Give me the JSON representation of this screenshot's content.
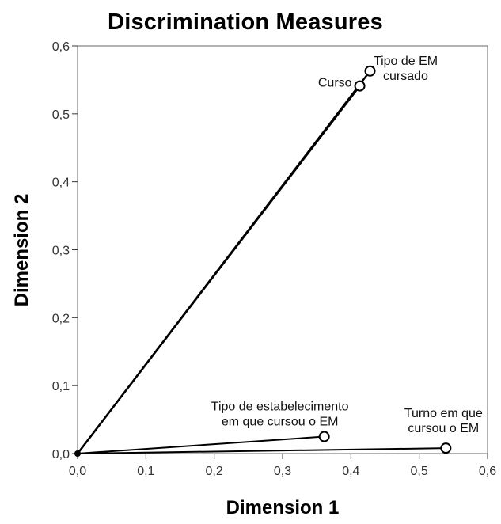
{
  "chart_data": {
    "type": "scatter",
    "title": "Discrimination Measures",
    "xlabel": "Dimension 1",
    "ylabel": "Dimension 2",
    "xlim": [
      0.0,
      0.6
    ],
    "ylim": [
      0.0,
      0.6
    ],
    "x_ticks": [
      "0,0",
      "0,1",
      "0,2",
      "0,3",
      "0,4",
      "0,5",
      "0,6"
    ],
    "y_ticks": [
      "0,0",
      "0,1",
      "0,2",
      "0,3",
      "0,4",
      "0,5",
      "0,6"
    ],
    "grid": false,
    "vectors_from_origin": true,
    "points": [
      {
        "label_lines": [
          "Curso"
        ],
        "x": 0.413,
        "y": 0.541,
        "label_anchor": "left"
      },
      {
        "label_lines": [
          "Tipo de EM",
          "cursado"
        ],
        "x": 0.428,
        "y": 0.563,
        "label_anchor": "right-above"
      },
      {
        "label_lines": [
          "Tipo de estabelecimento",
          "em que cursou o EM"
        ],
        "x": 0.361,
        "y": 0.025,
        "label_anchor": "above-left"
      },
      {
        "label_lines": [
          "Turno em que",
          "cursou o EM"
        ],
        "x": 0.539,
        "y": 0.008,
        "label_anchor": "above"
      }
    ]
  }
}
